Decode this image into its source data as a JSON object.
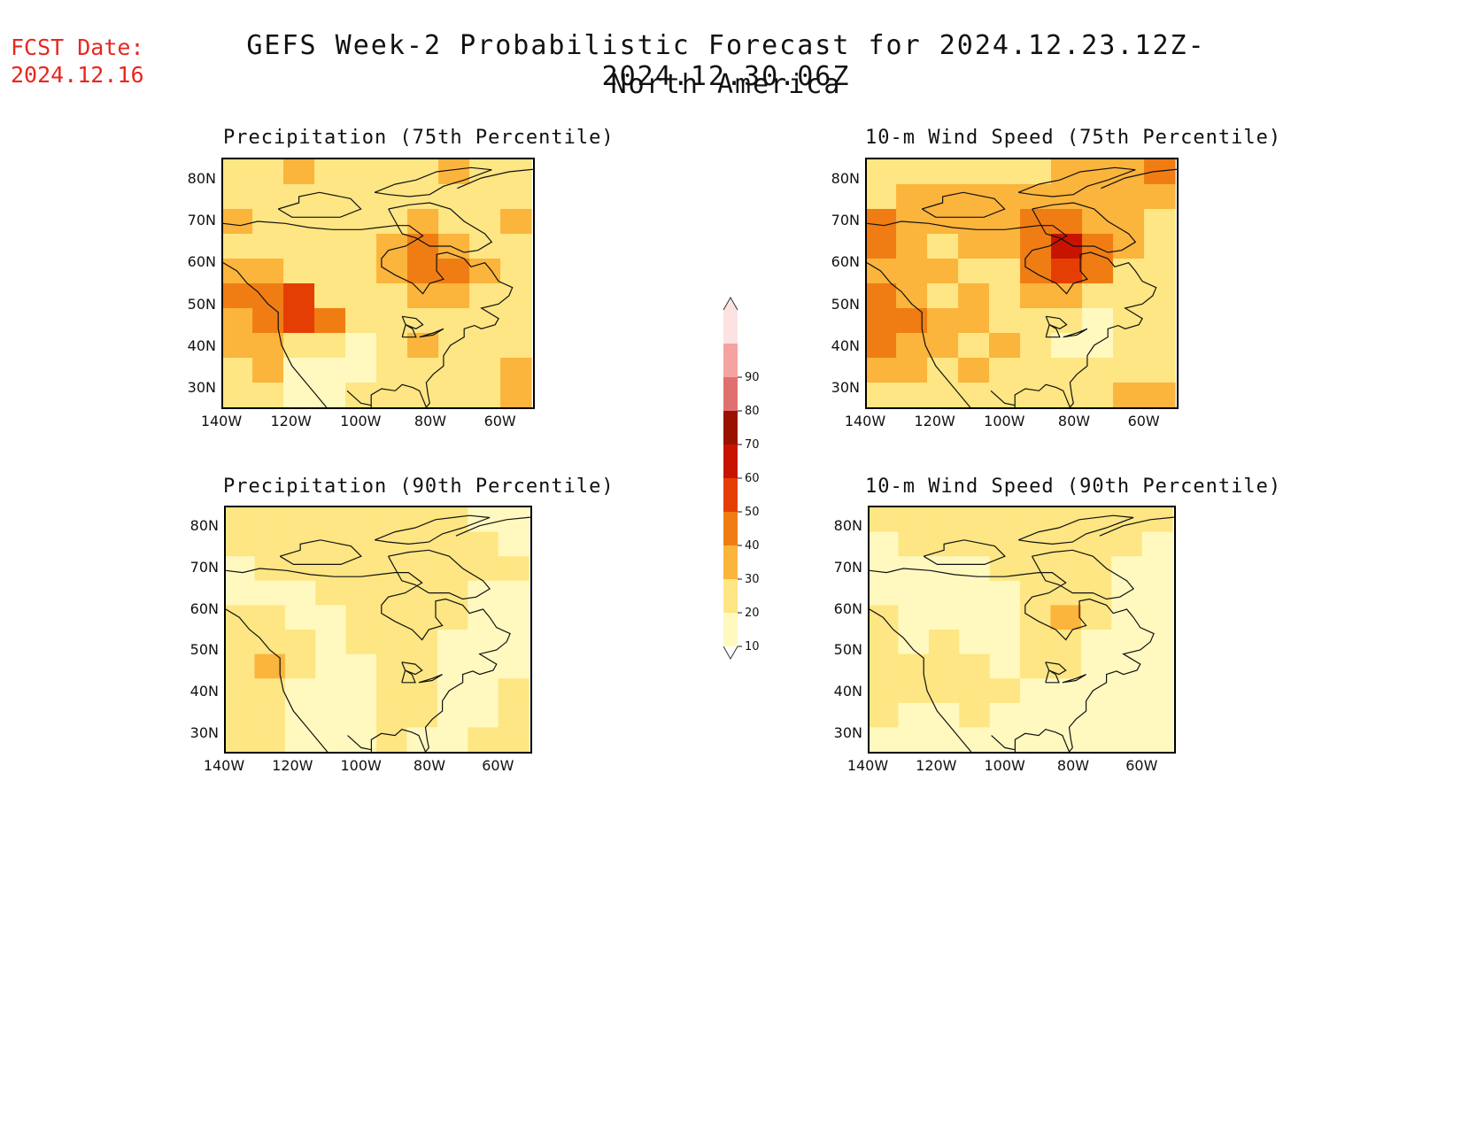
{
  "header": {
    "fcst_label": "FCST Date:",
    "fcst_date": "2024.12.16",
    "title": "GEFS Week-2 Probabilistic Forecast for 2024.12.23.12Z-2024.12.30.06Z",
    "subtitle": "North America"
  },
  "panels": [
    {
      "title": "Precipitation (75th Percentile)"
    },
    {
      "title": "10-m Wind Speed (75th Percentile)"
    },
    {
      "title": "Precipitation (90th Percentile)"
    },
    {
      "title": "10-m Wind Speed (90th Percentile)"
    }
  ],
  "axes": {
    "y_ticks": [
      "80N",
      "70N",
      "60N",
      "50N",
      "40N",
      "30N"
    ],
    "x_ticks": [
      "140W",
      "120W",
      "100W",
      "80W",
      "60W"
    ],
    "lat_range": [
      25,
      85
    ],
    "lon_range": [
      -140,
      -50
    ]
  },
  "colorbar": {
    "levels": [
      "10",
      "20",
      "30",
      "40",
      "50",
      "60",
      "70",
      "80",
      "90"
    ],
    "colors": [
      "#fff9c0",
      "#fde683",
      "#fbb43c",
      "#f07d13",
      "#e53e05",
      "#c81300",
      "#991200",
      "#e07070",
      "#f4a2a2",
      "#fde2e2"
    ]
  },
  "chart_data": {
    "type": "heatmap",
    "units": "probability (%)",
    "grids": [
      {
        "name": "Precipitation (75th Percentile)",
        "lats": [
          82,
          76,
          70,
          64,
          58,
          52,
          46,
          40,
          34,
          28
        ],
        "lons": [
          -136,
          -127,
          -118,
          -109,
          -100,
          -91,
          -82,
          -73,
          -64,
          -55
        ],
        "values": [
          [
            20,
            25,
            30,
            25,
            20,
            20,
            25,
            30,
            20,
            20
          ],
          [
            20,
            20,
            25,
            20,
            20,
            20,
            20,
            20,
            25,
            20
          ],
          [
            30,
            25,
            20,
            20,
            20,
            25,
            30,
            20,
            20,
            30
          ],
          [
            20,
            20,
            20,
            20,
            20,
            30,
            40,
            30,
            20,
            20
          ],
          [
            35,
            30,
            20,
            20,
            20,
            30,
            40,
            40,
            30,
            20
          ],
          [
            40,
            45,
            50,
            20,
            20,
            20,
            30,
            30,
            20,
            20
          ],
          [
            30,
            40,
            50,
            40,
            20,
            20,
            25,
            20,
            20,
            20
          ],
          [
            30,
            30,
            20,
            20,
            10,
            20,
            30,
            20,
            20,
            20
          ],
          [
            20,
            30,
            10,
            10,
            10,
            20,
            20,
            20,
            20,
            30
          ],
          [
            20,
            20,
            10,
            10,
            20,
            20,
            20,
            20,
            20,
            30
          ]
        ]
      },
      {
        "name": "10-m Wind Speed (75th Percentile)",
        "lats": [
          82,
          76,
          70,
          64,
          58,
          52,
          46,
          40,
          34,
          28
        ],
        "lons": [
          -136,
          -127,
          -118,
          -109,
          -100,
          -91,
          -82,
          -73,
          -64,
          -55
        ],
        "values": [
          [
            20,
            20,
            20,
            25,
            20,
            20,
            30,
            30,
            30,
            40
          ],
          [
            20,
            30,
            30,
            30,
            30,
            30,
            30,
            30,
            30,
            30
          ],
          [
            40,
            30,
            30,
            30,
            30,
            40,
            40,
            30,
            30,
            20
          ],
          [
            40,
            30,
            20,
            30,
            30,
            40,
            60,
            40,
            30,
            20
          ],
          [
            30,
            30,
            30,
            20,
            20,
            40,
            50,
            40,
            20,
            20
          ],
          [
            40,
            30,
            20,
            30,
            20,
            30,
            30,
            20,
            20,
            20
          ],
          [
            40,
            40,
            30,
            30,
            20,
            20,
            20,
            10,
            20,
            20
          ],
          [
            40,
            30,
            30,
            20,
            30,
            20,
            10,
            10,
            20,
            20
          ],
          [
            30,
            30,
            20,
            30,
            20,
            20,
            20,
            20,
            20,
            20
          ],
          [
            20,
            20,
            20,
            20,
            20,
            20,
            20,
            20,
            30,
            30
          ]
        ]
      },
      {
        "name": "Precipitation (90th Percentile)",
        "lats": [
          82,
          76,
          70,
          64,
          58,
          52,
          46,
          40,
          34,
          28
        ],
        "lons": [
          -136,
          -127,
          -118,
          -109,
          -100,
          -91,
          -82,
          -73,
          -64,
          -55
        ],
        "values": [
          [
            20,
            20,
            20,
            20,
            20,
            20,
            20,
            20,
            10,
            10
          ],
          [
            20,
            20,
            20,
            20,
            20,
            20,
            20,
            20,
            20,
            10
          ],
          [
            10,
            20,
            20,
            20,
            20,
            20,
            20,
            20,
            20,
            20
          ],
          [
            10,
            10,
            10,
            20,
            20,
            20,
            20,
            20,
            10,
            10
          ],
          [
            20,
            20,
            10,
            10,
            20,
            20,
            20,
            20,
            10,
            10
          ],
          [
            20,
            20,
            20,
            10,
            20,
            20,
            20,
            10,
            10,
            10
          ],
          [
            20,
            30,
            20,
            10,
            10,
            20,
            20,
            10,
            10,
            10
          ],
          [
            20,
            20,
            10,
            10,
            10,
            20,
            20,
            10,
            10,
            20
          ],
          [
            20,
            20,
            10,
            10,
            10,
            20,
            20,
            10,
            10,
            20
          ],
          [
            20,
            20,
            10,
            10,
            10,
            20,
            10,
            10,
            20,
            20
          ]
        ]
      },
      {
        "name": "10-m Wind Speed (90th Percentile)",
        "lats": [
          82,
          76,
          70,
          64,
          58,
          52,
          46,
          40,
          34,
          28
        ],
        "lons": [
          -136,
          -127,
          -118,
          -109,
          -100,
          -91,
          -82,
          -73,
          -64,
          -55
        ],
        "values": [
          [
            20,
            20,
            20,
            20,
            20,
            20,
            20,
            20,
            20,
            20
          ],
          [
            10,
            20,
            20,
            20,
            20,
            20,
            20,
            20,
            20,
            10
          ],
          [
            10,
            10,
            10,
            10,
            20,
            20,
            20,
            20,
            10,
            10
          ],
          [
            10,
            10,
            10,
            10,
            10,
            20,
            20,
            20,
            10,
            10
          ],
          [
            20,
            10,
            10,
            10,
            10,
            20,
            30,
            20,
            10,
            10
          ],
          [
            20,
            10,
            20,
            10,
            10,
            20,
            20,
            10,
            10,
            10
          ],
          [
            20,
            20,
            20,
            20,
            10,
            20,
            20,
            10,
            10,
            10
          ],
          [
            20,
            20,
            20,
            20,
            20,
            10,
            10,
            10,
            10,
            10
          ],
          [
            20,
            10,
            10,
            20,
            10,
            10,
            10,
            10,
            10,
            10
          ],
          [
            10,
            10,
            10,
            10,
            10,
            10,
            10,
            10,
            10,
            10
          ]
        ]
      }
    ]
  }
}
